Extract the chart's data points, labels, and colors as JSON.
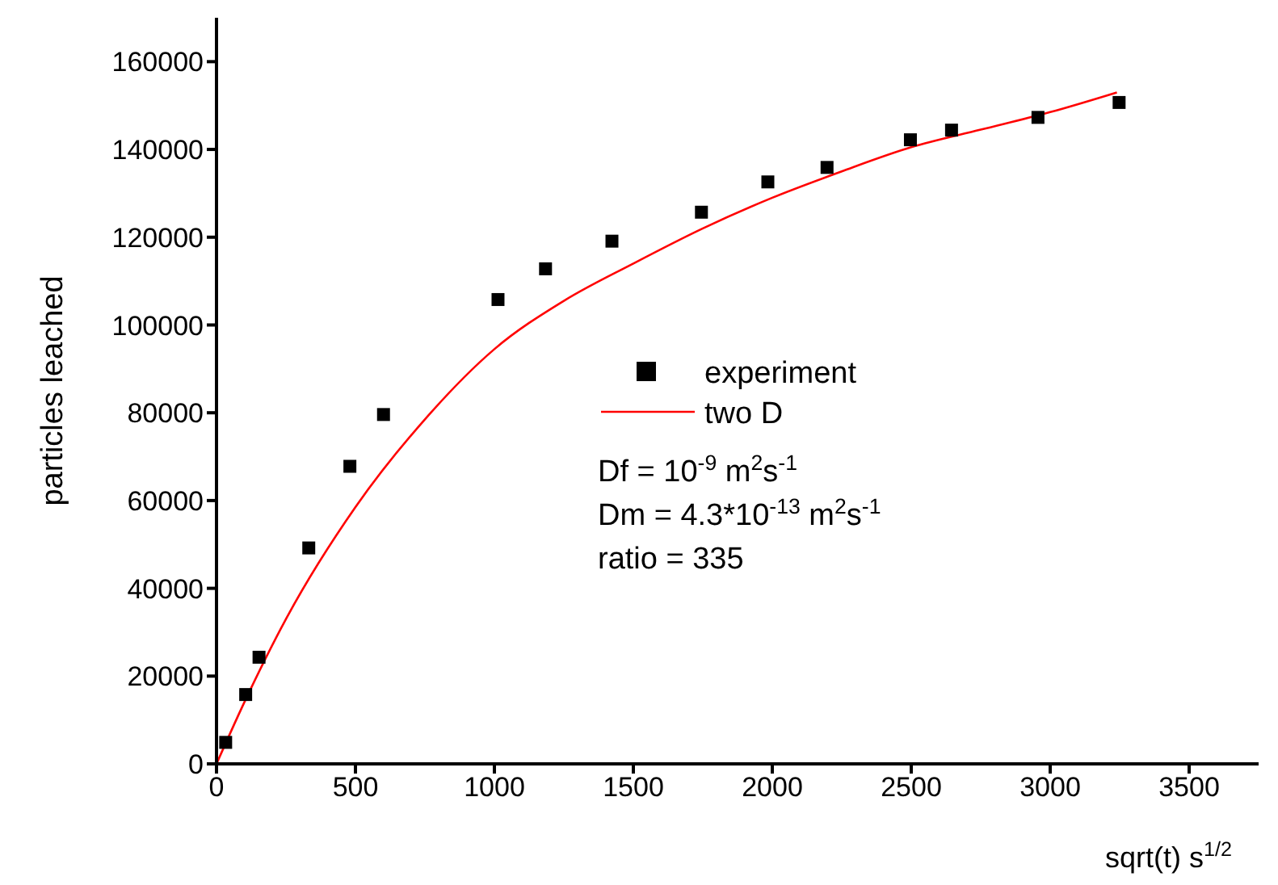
{
  "chart_data": {
    "type": "scatter",
    "xlabel": "sqrt(t) s$^{1/2}$",
    "ylabel": "particles leached",
    "xlim": [
      0,
      3750
    ],
    "xticks": [
      0,
      500,
      1000,
      1500,
      2000,
      2500,
      3000,
      3500
    ],
    "ylim": [
      0,
      170000
    ],
    "yticks": [
      0,
      20000,
      40000,
      60000,
      80000,
      100000,
      120000,
      140000,
      160000
    ],
    "legend": "right",
    "grid": false,
    "series": [
      {
        "name": "experiment",
        "marker": "square",
        "color": "#000000",
        "x": [
          33,
          105,
          153,
          332,
          480,
          601,
          1013,
          1184,
          1423,
          1745,
          1984,
          2197,
          2497,
          2645,
          2956,
          3248
        ],
        "values": [
          4900,
          15800,
          24300,
          49200,
          67800,
          79600,
          105800,
          112800,
          119100,
          125700,
          132600,
          135900,
          142200,
          144400,
          147300,
          150700
        ]
      },
      {
        "name": "two D",
        "type": "line",
        "marker": "none",
        "line_style": "solid",
        "color": "#ff0000",
        "x": [
          0,
          100,
          250,
          500,
          750,
          1000,
          1250,
          1500,
          1750,
          2000,
          2250,
          2500,
          2750,
          3000,
          3240
        ],
        "values": [
          0,
          14000,
          33000,
          58500,
          78500,
          94500,
          105500,
          114000,
          122000,
          129000,
          135000,
          140500,
          144500,
          148500,
          153000
        ]
      }
    ],
    "annotations": [
      "Df = 10$^{-9}$ m$^{2}$s$^{-1}$",
      "Dm = 4.3*10$^{-13}$ m$^{2}$s$^{-1}$",
      "ratio = 335"
    ]
  }
}
